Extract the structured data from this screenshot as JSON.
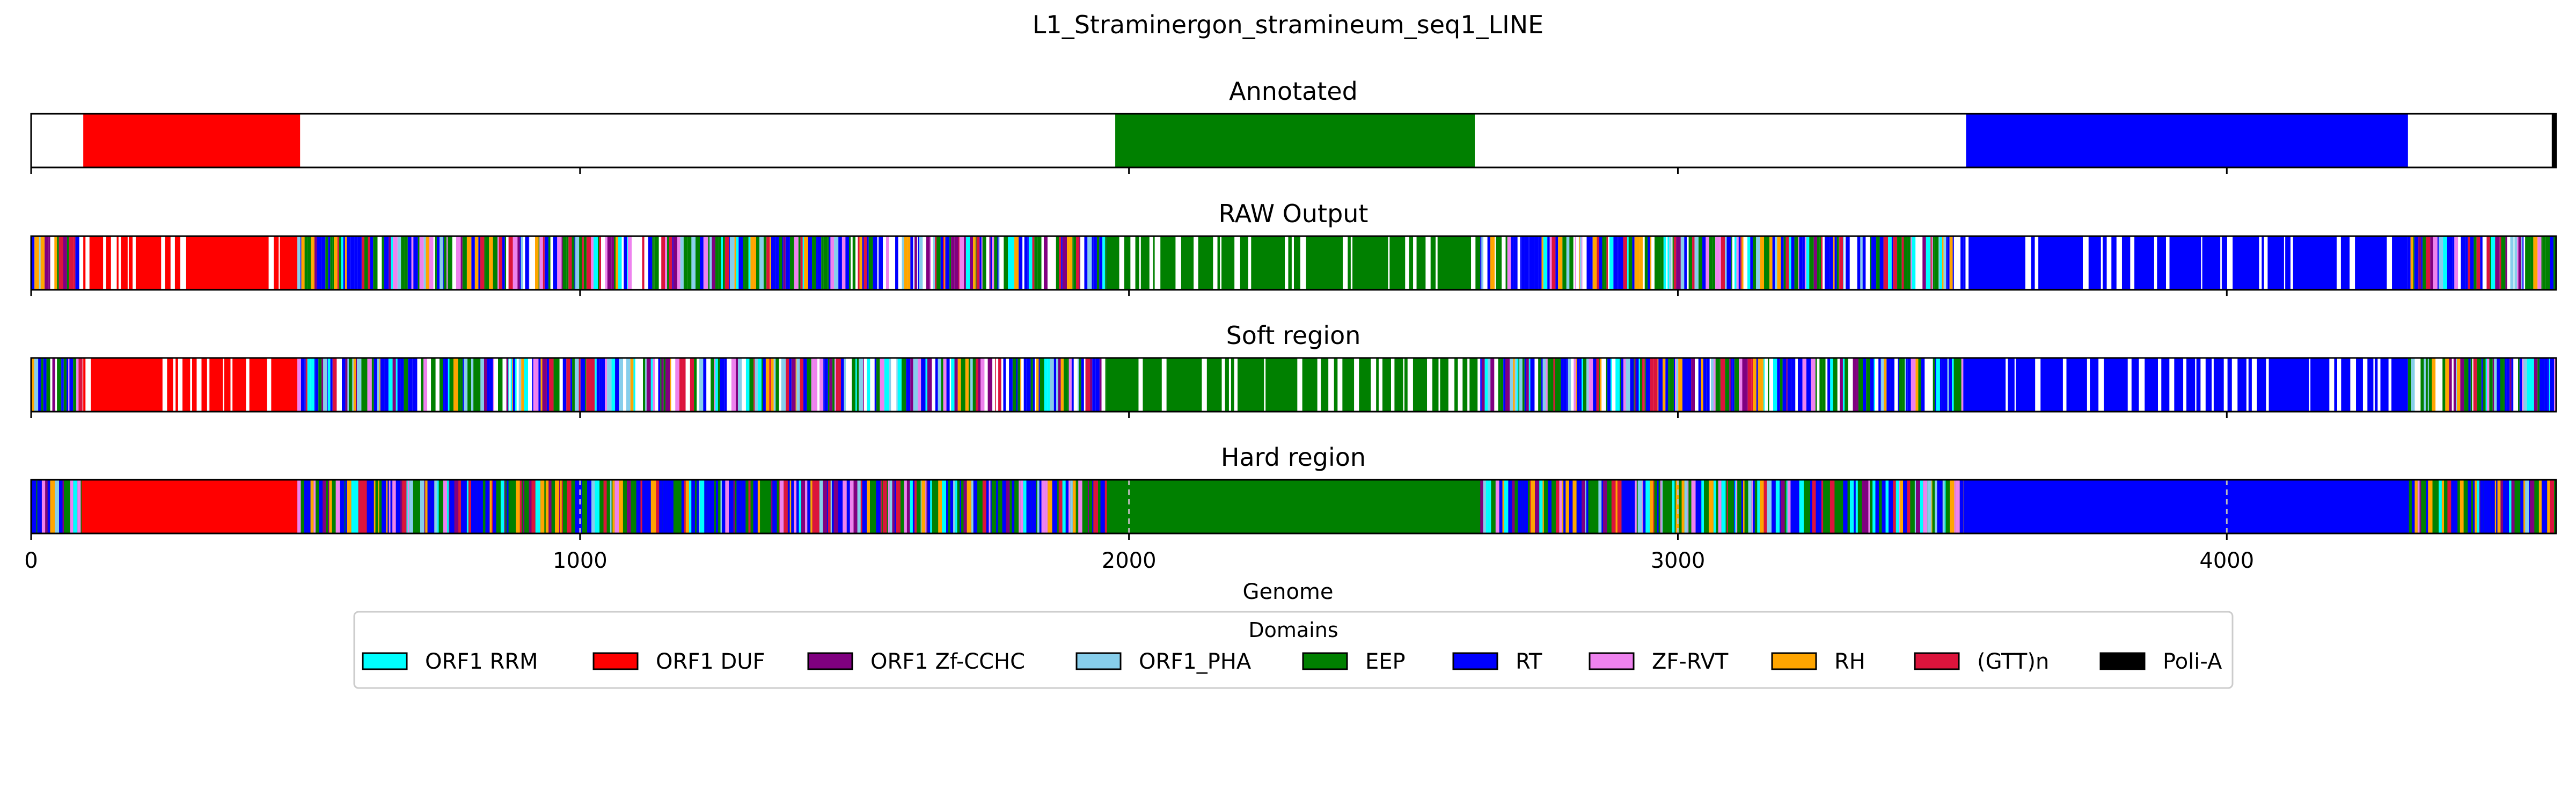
{
  "chart_data": {
    "type": "bar",
    "title": "L1_Straminergon_stramineum_seq1_LINE",
    "xlabel": "Genome",
    "xlim": [
      0,
      4600
    ],
    "xticks": [
      0,
      1000,
      2000,
      3000,
      4000
    ],
    "grid": "vertical dashed lines at x ticks on Hard region panel",
    "panels": [
      {
        "name": "Annotated",
        "segments": [
          {
            "domain": "ORF1 DUF",
            "start": 95,
            "end": 490
          },
          {
            "domain": "EEP",
            "start": 1975,
            "end": 2630
          },
          {
            "domain": "RT",
            "start": 3525,
            "end": 4330
          },
          {
            "domain": "Poli-A",
            "start": 4592,
            "end": 4600
          }
        ]
      },
      {
        "name": "RAW Output",
        "base_color": "#ffffff",
        "segments": [
          {
            "domain": "RT",
            "start": 0,
            "end": 95,
            "pattern": "mixed"
          },
          {
            "domain": "ORF1 DUF",
            "start": 95,
            "end": 485,
            "pattern": "dense-with-gaps"
          },
          {
            "domain": "mixed",
            "start": 485,
            "end": 1960,
            "pattern": "mixed"
          },
          {
            "domain": "EEP",
            "start": 1960,
            "end": 2640,
            "pattern": "dense-with-gaps"
          },
          {
            "domain": "mixed",
            "start": 2640,
            "end": 3520,
            "pattern": "mixed"
          },
          {
            "domain": "RT",
            "start": 3520,
            "end": 4330,
            "pattern": "dense-with-gaps"
          },
          {
            "domain": "mixed",
            "start": 4330,
            "end": 4600,
            "pattern": "mixed"
          }
        ]
      },
      {
        "name": "Soft region",
        "base_color": "#ffffff",
        "segments": [
          {
            "domain": "RT",
            "start": 0,
            "end": 95,
            "pattern": "mixed"
          },
          {
            "domain": "ORF1 DUF",
            "start": 95,
            "end": 485,
            "pattern": "dense-with-gaps"
          },
          {
            "domain": "mixed",
            "start": 485,
            "end": 1960,
            "pattern": "mixed"
          },
          {
            "domain": "EEP",
            "start": 1960,
            "end": 2640,
            "pattern": "dense-with-gaps"
          },
          {
            "domain": "mixed",
            "start": 2640,
            "end": 3520,
            "pattern": "mixed"
          },
          {
            "domain": "RT",
            "start": 3520,
            "end": 4330,
            "pattern": "dense-with-gaps"
          },
          {
            "domain": "mixed",
            "start": 4330,
            "end": 4600,
            "pattern": "mixed"
          }
        ]
      },
      {
        "name": "Hard region",
        "base_color": "#008000",
        "segments": [
          {
            "domain": "RT",
            "start": 0,
            "end": 92,
            "pattern": "mixed"
          },
          {
            "domain": "ORF1 DUF",
            "start": 92,
            "end": 485,
            "pattern": "solid"
          },
          {
            "domain": "mixed",
            "start": 485,
            "end": 1960,
            "pattern": "mixed"
          },
          {
            "domain": "EEP",
            "start": 1960,
            "end": 2640,
            "pattern": "solid"
          },
          {
            "domain": "mixed",
            "start": 2640,
            "end": 3520,
            "pattern": "mixed"
          },
          {
            "domain": "RT",
            "start": 3520,
            "end": 4330,
            "pattern": "solid"
          },
          {
            "domain": "mixed",
            "start": 4330,
            "end": 4600,
            "pattern": "mixed"
          }
        ]
      }
    ],
    "legend": {
      "title": "Domains",
      "placement": "bottom-center",
      "entries": [
        {
          "name": "ORF1 RRM",
          "color": "#00ffff"
        },
        {
          "name": "ORF1 DUF",
          "color": "#ff0000"
        },
        {
          "name": "ORF1 Zf-CCHC",
          "color": "#800080"
        },
        {
          "name": "ORF1_PHA",
          "color": "#87ceeb"
        },
        {
          "name": "EEP",
          "color": "#008000"
        },
        {
          "name": "RT",
          "color": "#0000ff"
        },
        {
          "name": "ZF-RVT",
          "color": "#ee82ee"
        },
        {
          "name": "RH",
          "color": "#ffa500"
        },
        {
          "name": "(GTT)n",
          "color": "#dc143c"
        },
        {
          "name": "Poli-A",
          "color": "#000000"
        }
      ]
    }
  }
}
